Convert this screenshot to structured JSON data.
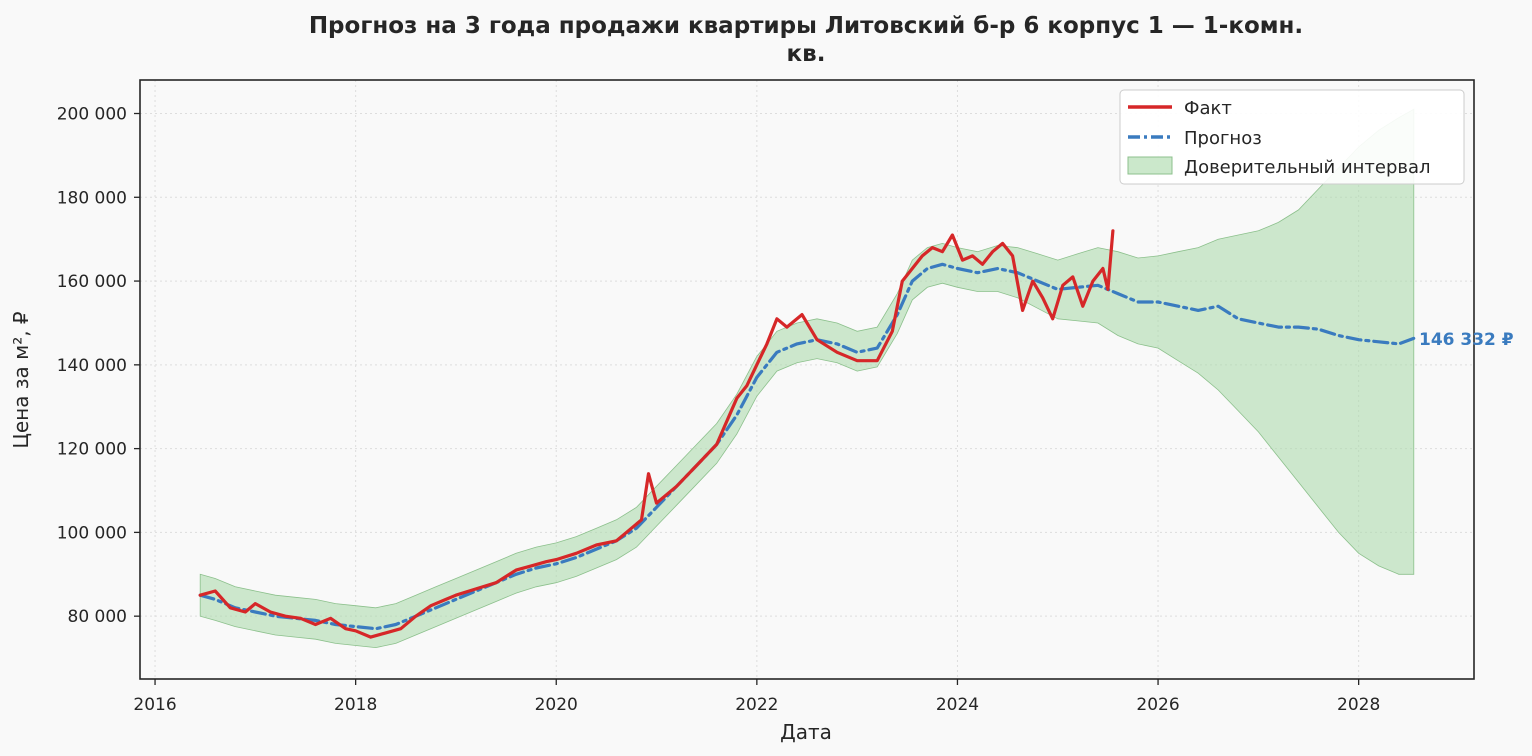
{
  "chart_data": {
    "type": "line",
    "title": [
      "Прогноз на 3 года продажи квартиры  Литовский б-р 6 корпус 1 — 1-комн.",
      "кв."
    ],
    "xlabel": "Дата",
    "ylabel": "Цена за м², ₽",
    "xlim": [
      2015.85,
      2029.15
    ],
    "ylim": [
      65000,
      208000
    ],
    "x_ticks": [
      2016,
      2018,
      2020,
      2022,
      2024,
      2026,
      2028
    ],
    "y_ticks": [
      80000,
      100000,
      120000,
      140000,
      160000,
      180000,
      200000
    ],
    "y_tick_labels": [
      "80 000",
      "100 000",
      "120 000",
      "140 000",
      "160 000",
      "180 000",
      "200 000"
    ],
    "grid": true,
    "legend_position": "top-right",
    "colors": {
      "fact": "#d62728",
      "forecast": "#3a7bbf",
      "interval": "#a8d8a8",
      "end_label": "#3a7bbf"
    },
    "end_label": "146 332 ₽",
    "series": [
      {
        "name": "Факт",
        "x": [
          2016.45,
          2016.6,
          2016.75,
          2016.9,
          2017.0,
          2017.15,
          2017.3,
          2017.45,
          2017.6,
          2017.75,
          2017.9,
          2018.0,
          2018.15,
          2018.3,
          2018.45,
          2018.6,
          2018.75,
          2018.9,
          2019.0,
          2019.2,
          2019.4,
          2019.6,
          2019.75,
          2019.9,
          2020.0,
          2020.2,
          2020.4,
          2020.6,
          2020.75,
          2020.85,
          2020.92,
          2021.0,
          2021.2,
          2021.4,
          2021.6,
          2021.8,
          2021.9,
          2022.0,
          2022.1,
          2022.2,
          2022.3,
          2022.45,
          2022.6,
          2022.8,
          2023.0,
          2023.2,
          2023.35,
          2023.45,
          2023.55,
          2023.65,
          2023.75,
          2023.85,
          2023.95,
          2024.05,
          2024.15,
          2024.25,
          2024.35,
          2024.45,
          2024.55,
          2024.65,
          2024.75,
          2024.85,
          2024.95,
          2025.05,
          2025.15,
          2025.25,
          2025.35,
          2025.45,
          2025.5,
          2025.55
        ],
        "values": [
          85000,
          86000,
          82000,
          81000,
          83000,
          81000,
          80000,
          79500,
          78000,
          79500,
          77000,
          76500,
          75000,
          76000,
          77000,
          80000,
          82500,
          84000,
          85000,
          86500,
          88000,
          91000,
          92000,
          93000,
          93500,
          95000,
          97000,
          98000,
          101000,
          103000,
          114000,
          107000,
          111000,
          116000,
          121000,
          132000,
          135000,
          140000,
          145000,
          151000,
          149000,
          152000,
          146000,
          143000,
          141000,
          141000,
          148000,
          160000,
          163000,
          166000,
          168000,
          167000,
          171000,
          165000,
          166000,
          164000,
          167000,
          169000,
          166000,
          153000,
          160000,
          156000,
          151000,
          159000,
          161000,
          154000,
          160000,
          163000,
          158000,
          172000
        ]
      },
      {
        "name": "Прогноз",
        "x": [
          2016.45,
          2016.6,
          2016.8,
          2017.0,
          2017.2,
          2017.4,
          2017.6,
          2017.8,
          2018.0,
          2018.2,
          2018.4,
          2018.6,
          2018.8,
          2019.0,
          2019.2,
          2019.4,
          2019.6,
          2019.8,
          2020.0,
          2020.2,
          2020.4,
          2020.6,
          2020.8,
          2021.0,
          2021.2,
          2021.4,
          2021.6,
          2021.8,
          2022.0,
          2022.2,
          2022.4,
          2022.6,
          2022.8,
          2023.0,
          2023.2,
          2023.4,
          2023.55,
          2023.7,
          2023.85,
          2024.0,
          2024.2,
          2024.4,
          2024.6,
          2024.8,
          2025.0,
          2025.2,
          2025.4,
          2025.6,
          2025.8,
          2026.0,
          2026.2,
          2026.4,
          2026.6,
          2026.8,
          2027.0,
          2027.2,
          2027.4,
          2027.6,
          2027.8,
          2028.0,
          2028.2,
          2028.4,
          2028.55
        ],
        "values": [
          85000,
          84000,
          82000,
          81000,
          80000,
          79500,
          79000,
          78000,
          77500,
          77000,
          78000,
          80000,
          82000,
          84000,
          86000,
          88000,
          90000,
          91500,
          92500,
          94000,
          96000,
          98000,
          101000,
          106000,
          111000,
          116000,
          121000,
          128000,
          137000,
          143000,
          145000,
          146000,
          145000,
          143000,
          144000,
          152000,
          160000,
          163000,
          164000,
          163000,
          162000,
          163000,
          162000,
          160000,
          158000,
          158500,
          159000,
          157000,
          155000,
          155000,
          154000,
          153000,
          154000,
          151000,
          150000,
          149000,
          149000,
          148500,
          147000,
          146000,
          145500,
          145000,
          146332
        ]
      }
    ],
    "confidence_interval": {
      "name": "Доверительный интервал",
      "x": [
        2016.45,
        2016.6,
        2016.8,
        2017.0,
        2017.2,
        2017.4,
        2017.6,
        2017.8,
        2018.0,
        2018.2,
        2018.4,
        2018.6,
        2018.8,
        2019.0,
        2019.2,
        2019.4,
        2019.6,
        2019.8,
        2020.0,
        2020.2,
        2020.4,
        2020.6,
        2020.8,
        2021.0,
        2021.2,
        2021.4,
        2021.6,
        2021.8,
        2022.0,
        2022.2,
        2022.4,
        2022.6,
        2022.8,
        2023.0,
        2023.2,
        2023.4,
        2023.55,
        2023.7,
        2023.85,
        2024.0,
        2024.2,
        2024.4,
        2024.6,
        2024.8,
        2025.0,
        2025.2,
        2025.4,
        2025.6,
        2025.8,
        2026.0,
        2026.2,
        2026.4,
        2026.6,
        2026.8,
        2027.0,
        2027.2,
        2027.4,
        2027.6,
        2027.8,
        2028.0,
        2028.2,
        2028.4,
        2028.55
      ],
      "lower": [
        80000,
        79000,
        77500,
        76500,
        75500,
        75000,
        74500,
        73500,
        73000,
        72500,
        73500,
        75500,
        77500,
        79500,
        81500,
        83500,
        85500,
        87000,
        88000,
        89500,
        91500,
        93500,
        96500,
        101500,
        106500,
        111500,
        116500,
        123500,
        132500,
        138500,
        140500,
        141500,
        140500,
        138500,
        139500,
        147500,
        155500,
        158500,
        159500,
        158500,
        157500,
        157500,
        156000,
        153500,
        151000,
        150500,
        150000,
        147000,
        145000,
        144000,
        141000,
        138000,
        134000,
        129000,
        124000,
        118000,
        112000,
        106000,
        100000,
        95000,
        92000,
        90000,
        90000
      ],
      "upper": [
        90000,
        89000,
        87000,
        86000,
        85000,
        84500,
        84000,
        83000,
        82500,
        82000,
        83000,
        85000,
        87000,
        89000,
        91000,
        93000,
        95000,
        96500,
        97500,
        99000,
        101000,
        103000,
        106000,
        111000,
        116000,
        121000,
        126000,
        133000,
        142000,
        148000,
        150000,
        151000,
        150000,
        148000,
        149000,
        157000,
        165000,
        168000,
        169000,
        168000,
        167000,
        168500,
        168000,
        166500,
        165000,
        166500,
        168000,
        167000,
        165500,
        166000,
        167000,
        168000,
        170000,
        171000,
        172000,
        174000,
        177000,
        182000,
        187000,
        192000,
        196000,
        199000,
        201000
      ]
    }
  }
}
